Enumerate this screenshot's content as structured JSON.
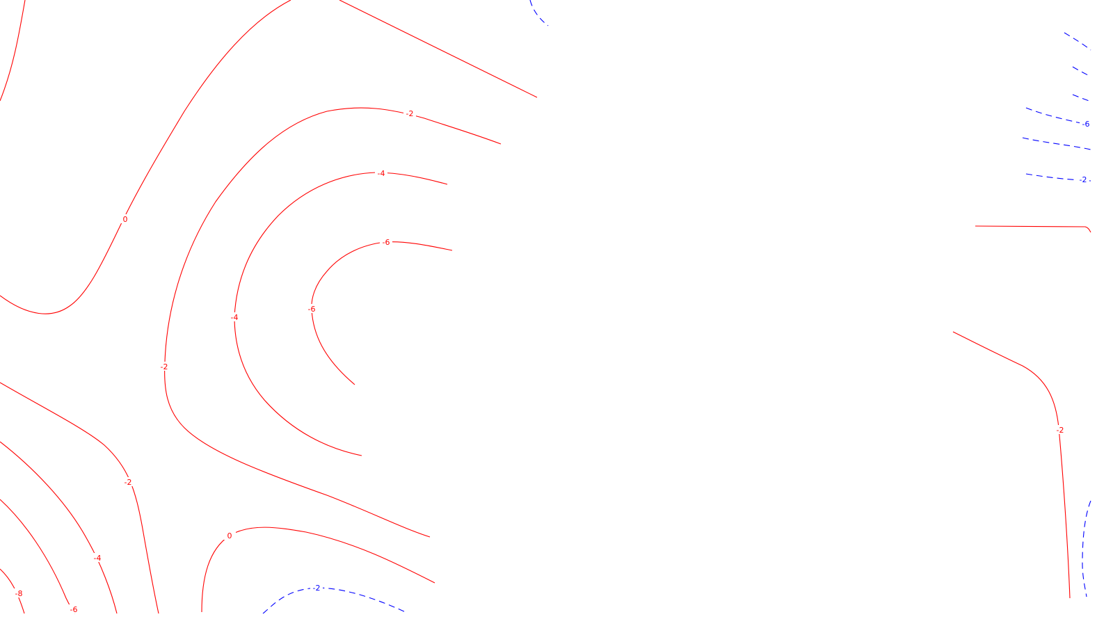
{
  "chart_data": {
    "type": "contour",
    "title": "",
    "xlabel": "",
    "ylabel": "",
    "grid": false,
    "legend": "none",
    "colors": {
      "negative": "#ff0000",
      "negative_dashed": "#0000ff",
      "background": "#ffffff"
    },
    "levels": [
      -8,
      -6,
      -4,
      -2,
      0
    ],
    "contours": [
      {
        "id": "red-0-upper-left",
        "level": 0,
        "label": "0",
        "color": "#ff0000",
        "dashed": false
      },
      {
        "id": "red-0-lower-middle",
        "level": 0,
        "label": "0",
        "color": "#ff0000",
        "dashed": false
      },
      {
        "id": "red-m2-main",
        "level": -2,
        "label": "-2",
        "color": "#ff0000",
        "dashed": false
      },
      {
        "id": "red-m2-upper",
        "level": -2,
        "label": "-2",
        "color": "#ff0000",
        "dashed": false
      },
      {
        "id": "red-m4-main",
        "level": -4,
        "label": "-4",
        "color": "#ff0000",
        "dashed": false
      },
      {
        "id": "red-m6-main",
        "level": -6,
        "label": "-6",
        "color": "#ff0000",
        "dashed": false
      },
      {
        "id": "red-m2-lower-left",
        "level": -2,
        "label": "-2",
        "color": "#ff0000",
        "dashed": false
      },
      {
        "id": "red-m4-lower-left",
        "level": -4,
        "label": "-4",
        "color": "#ff0000",
        "dashed": false
      },
      {
        "id": "red-m6-lower-left",
        "level": -6,
        "label": "-6",
        "color": "#ff0000",
        "dashed": false
      },
      {
        "id": "red-m8-lower-left",
        "level": -8,
        "label": "-8",
        "color": "#ff0000",
        "dashed": false
      },
      {
        "id": "red-m2-right",
        "level": -2,
        "label": "-2",
        "color": "#ff0000",
        "dashed": false
      },
      {
        "id": "blue-m2-bottom",
        "level": -2,
        "label": "-2",
        "color": "#0000ff",
        "dashed": true
      },
      {
        "id": "blue-m6-right",
        "level": -6,
        "label": "-6",
        "color": "#0000ff",
        "dashed": true
      },
      {
        "id": "blue-m2-right",
        "level": -2,
        "label": "-2",
        "color": "#0000ff",
        "dashed": true
      }
    ]
  }
}
